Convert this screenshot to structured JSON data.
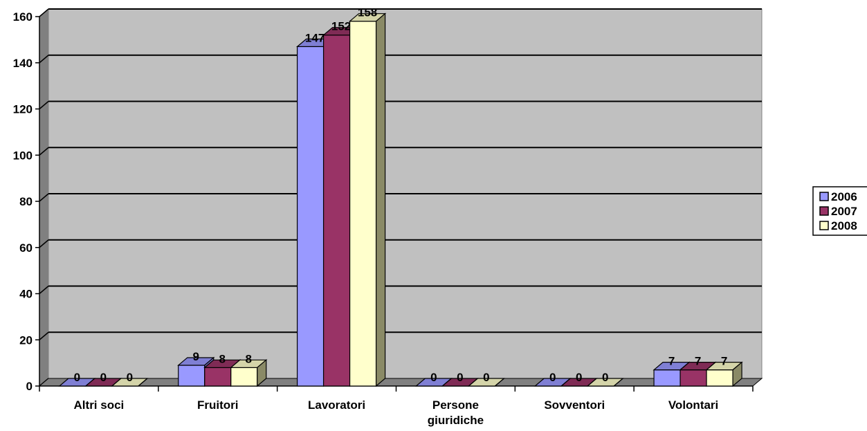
{
  "chart_data": {
    "type": "bar",
    "categories": [
      [
        "Altri soci"
      ],
      [
        "Fruitori"
      ],
      [
        "Lavoratori"
      ],
      [
        "Persone",
        "giuridiche"
      ],
      [
        "Sovventori"
      ],
      [
        "Volontari"
      ]
    ],
    "series": [
      {
        "name": "2006",
        "values": [
          0,
          9,
          147,
          0,
          0,
          7
        ],
        "labels": [
          "0",
          "9",
          "147",
          "0",
          "0",
          "7"
        ],
        "color": "#9999ff",
        "side_color": "#6a6ab3",
        "top_color": "#7f7fd4"
      },
      {
        "name": "2007",
        "values": [
          0,
          8,
          152,
          0,
          0,
          7
        ],
        "labels": [
          "0",
          "8",
          "152",
          "0",
          "0",
          "7"
        ],
        "color": "#993366",
        "side_color": "#6b2447",
        "top_color": "#7f2b55"
      },
      {
        "name": "2008",
        "values": [
          0,
          8,
          158,
          0,
          0,
          7
        ],
        "labels": [
          "0",
          "8",
          "158",
          "0",
          "0",
          "7"
        ],
        "color": "#ffffcc",
        "side_color": "#8a8a66",
        "top_color": "#d4d4a9"
      }
    ],
    "ylim": [
      0,
      160
    ],
    "yticks": [
      0,
      20,
      40,
      60,
      80,
      100,
      120,
      140,
      160
    ],
    "grid": true,
    "legend_position": "right",
    "plot_background": "#c0c0c0",
    "wall_side_color": "#808080"
  }
}
